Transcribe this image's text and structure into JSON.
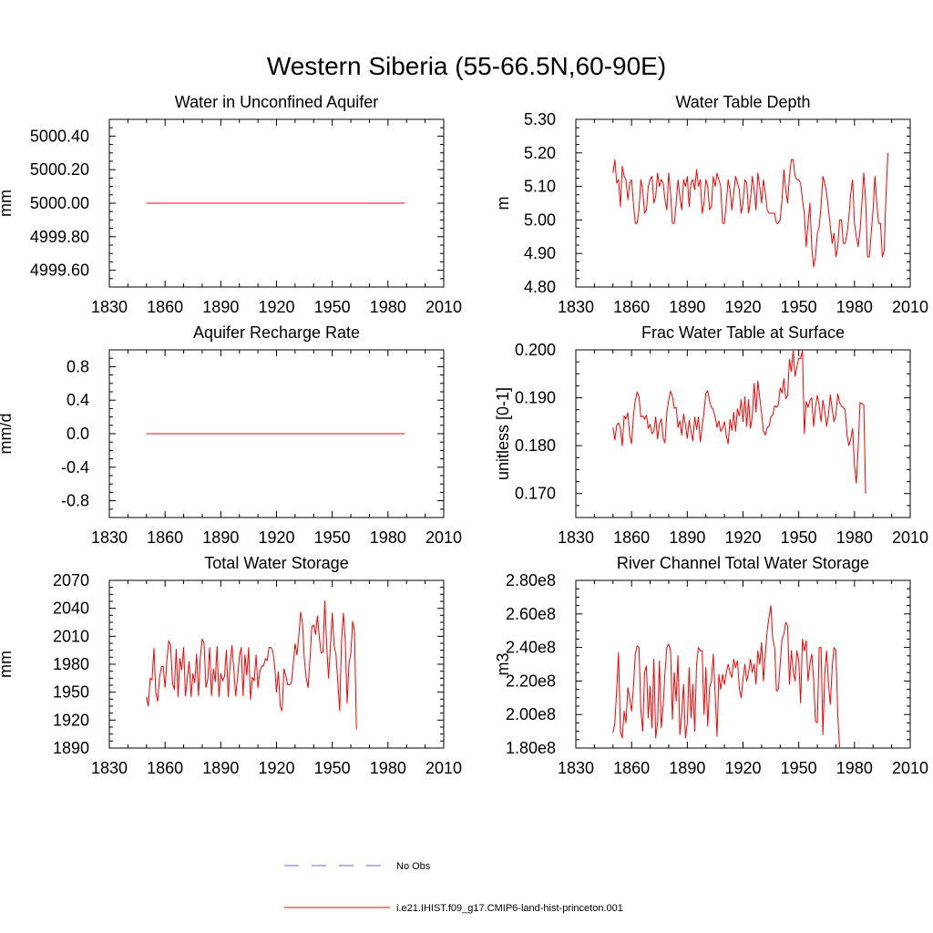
{
  "figure": {
    "title": "Western Siberia (55-66.5N,60-90E)"
  },
  "legend": {
    "entries": [
      {
        "label": "No Obs",
        "color": "#6a6acd",
        "style": "dashed"
      },
      {
        "label": "i.e21.IHIST.f09_g17.CMIP6-land-hist-princeton.001",
        "color": "#ff0000",
        "style": "solid"
      }
    ]
  },
  "chart_data": [
    {
      "type": "line",
      "title": "Water in Unconfined Aquifer",
      "ylabel": "mm",
      "xlim": [
        1830,
        2010
      ],
      "ylim": [
        4999.5,
        5000.5
      ],
      "xticks": [
        1830,
        1860,
        1890,
        1920,
        1950,
        1980,
        2010
      ],
      "yticks": [
        4999.6,
        4999.8,
        5000.0,
        5000.2,
        5000.4
      ],
      "ytick_labels": [
        "4999.60",
        "4999.80",
        "5000.00",
        "5000.20",
        "5000.40"
      ],
      "series": [
        {
          "color": "#ff0000",
          "x": [
            1850,
            1989
          ],
          "y": [
            5000.0,
            5000.0
          ]
        }
      ]
    },
    {
      "type": "line",
      "title": "Water Table Depth",
      "ylabel": "m",
      "xlim": [
        1830,
        2010
      ],
      "ylim": [
        4.8,
        5.3
      ],
      "xticks": [
        1830,
        1860,
        1890,
        1920,
        1950,
        1980,
        2010
      ],
      "yticks": [
        4.8,
        4.9,
        5.0,
        5.1,
        5.2,
        5.3
      ],
      "ytick_labels": [
        "4.80",
        "4.90",
        "5.00",
        "5.10",
        "5.20",
        "5.30"
      ],
      "series": [
        {
          "color": "#ff0000",
          "x_start": 1850,
          "x_step": 1,
          "y": [
            5.14,
            5.18,
            5.11,
            5.12,
            5.04,
            5.16,
            5.13,
            5.12,
            5.06,
            5.11,
            5.12,
            5.05,
            4.99,
            4.99,
            5.03,
            5.12,
            5.09,
            5.02,
            5.03,
            5.1,
            5.12,
            5.13,
            5.05,
            5.07,
            5.14,
            5.1,
            5.12,
            5.11,
            5.06,
            5.03,
            5.14,
            5.08,
            4.99,
            4.99,
            5.05,
            5.12,
            5.07,
            5.03,
            5.12,
            5.1,
            5.13,
            5.04,
            5.11,
            5.12,
            5.09,
            5.15,
            5.1,
            5.12,
            5.02,
            5.05,
            5.12,
            5.1,
            5.03,
            5.04,
            5.13,
            5.1,
            5.14,
            5.12,
            5.1,
            4.99,
            4.99,
            5.05,
            5.12,
            5.09,
            5.03,
            5.08,
            5.13,
            5.11,
            5.09,
            5.02,
            5.05,
            5.12,
            5.11,
            5.02,
            5.06,
            5.13,
            5.09,
            5.03,
            5.14,
            5.1,
            5.05,
            5.12,
            5.08,
            5.03,
            5.02,
            5.02,
            5.02,
            5.02,
            4.99,
            4.99,
            5.0,
            5.06,
            5.15,
            5.09,
            5.05,
            5.13,
            5.18,
            5.18,
            5.13,
            5.12,
            5.12,
            5.11,
            5.06,
            5.02,
            4.92,
            4.99,
            5.05,
            4.92,
            4.86,
            4.89,
            4.96,
            4.98,
            5.04,
            5.13,
            5.11,
            5.08,
            5.03,
            4.98,
            4.93,
            4.96,
            4.89,
            4.92,
            5.0,
            5.0,
            4.93,
            4.93,
            4.96,
            5.01,
            5.08,
            5.12,
            4.99,
            4.95,
            4.92,
            4.97,
            5.05,
            5.14,
            5.06,
            4.89,
            4.89,
            4.96,
            5.03,
            5.13,
            5.05,
            4.99,
            4.99,
            4.89,
            4.91,
            5.08,
            5.2
          ]
        }
      ]
    },
    {
      "type": "line",
      "title": "Aquifer Recharge Rate",
      "ylabel": "mm/d",
      "xlim": [
        1830,
        2010
      ],
      "ylim": [
        -1.0,
        1.0
      ],
      "xticks": [
        1830,
        1860,
        1890,
        1920,
        1950,
        1980,
        2010
      ],
      "yticks": [
        -0.8,
        -0.4,
        0.0,
        0.4,
        0.8
      ],
      "ytick_labels": [
        "-0.8",
        "-0.4",
        "0.0",
        "0.4",
        "0.8"
      ],
      "series": [
        {
          "color": "#ff0000",
          "x": [
            1850,
            1989
          ],
          "y": [
            0.0,
            0.0
          ]
        }
      ]
    },
    {
      "type": "line",
      "title": "Frac Water Table at Surface",
      "ylabel": "unitless [0-1]",
      "xlim": [
        1830,
        2010
      ],
      "ylim": [
        0.165,
        0.2
      ],
      "xticks": [
        1830,
        1860,
        1890,
        1920,
        1950,
        1980,
        2010
      ],
      "yticks": [
        0.17,
        0.18,
        0.19,
        0.2
      ],
      "ytick_labels": [
        "0.170",
        "0.180",
        "0.190",
        "0.200"
      ],
      "series": [
        {
          "color": "#ff0000",
          "x_start": 1850,
          "x_step": 1,
          "y": [
            0.1838,
            0.1812,
            0.1842,
            0.1848,
            0.1836,
            0.18,
            0.1862,
            0.1856,
            0.1869,
            0.1821,
            0.1804,
            0.1861,
            0.1895,
            0.1912,
            0.1902,
            0.186,
            0.1862,
            0.1855,
            0.1864,
            0.1836,
            0.1845,
            0.1825,
            0.183,
            0.186,
            0.1814,
            0.1845,
            0.1856,
            0.1816,
            0.1806,
            0.187,
            0.1895,
            0.1914,
            0.1903,
            0.1878,
            0.188,
            0.1838,
            0.1852,
            0.1822,
            0.1866,
            0.1844,
            0.1815,
            0.1853,
            0.183,
            0.181,
            0.186,
            0.1834,
            0.186,
            0.1808,
            0.184,
            0.187,
            0.1909,
            0.1915,
            0.1893,
            0.188,
            0.1875,
            0.186,
            0.1838,
            0.1852,
            0.183,
            0.1836,
            0.185,
            0.182,
            0.1804,
            0.1855,
            0.1832,
            0.187,
            0.183,
            0.1877,
            0.1862,
            0.1896,
            0.185,
            0.1902,
            0.184,
            0.1896,
            0.1836,
            0.1862,
            0.193,
            0.187,
            0.1935,
            0.19,
            0.1868,
            0.183,
            0.1822,
            0.1838,
            0.184,
            0.186,
            0.1864,
            0.1883,
            0.188,
            0.1885,
            0.192,
            0.191,
            0.194,
            0.1898,
            0.1905,
            0.198,
            0.1955,
            0.1999,
            0.1945,
            0.1964,
            0.1983,
            0.1982,
            0.1998,
            0.1825,
            0.1892,
            0.188,
            0.1895,
            0.19,
            0.184,
            0.188,
            0.1905,
            0.1884,
            0.185,
            0.1895,
            0.1872,
            0.184,
            0.1865,
            0.1906,
            0.1876,
            0.185,
            0.1865,
            0.1908,
            0.189,
            0.1882,
            0.188,
            0.1874,
            0.1822,
            0.18,
            0.1814,
            0.1836,
            0.1758,
            0.1722,
            0.1797,
            0.189,
            0.1888,
            0.1885,
            0.17
          ]
        }
      ]
    },
    {
      "type": "line",
      "title": "Total Water Storage",
      "ylabel": "mm",
      "xlim": [
        1830,
        2010
      ],
      "ylim": [
        1890,
        2070
      ],
      "xticks": [
        1830,
        1860,
        1890,
        1920,
        1950,
        1980,
        2010
      ],
      "yticks": [
        1890,
        1920,
        1950,
        1980,
        2010,
        2040,
        2070
      ],
      "ytick_labels": [
        "1890",
        "1920",
        "1950",
        "1980",
        "2010",
        "2040",
        "2070"
      ],
      "series": [
        {
          "color": "#ff0000",
          "x_start": 1850,
          "x_step": 1,
          "y": [
            1945,
            1935,
            1965,
            1963,
            1997,
            1950,
            1940,
            1965,
            1977,
            1978,
            1955,
            1985,
            2005,
            2000,
            1960,
            1953,
            1996,
            1945,
            1986,
            1974,
            1998,
            1946,
            1965,
            1983,
            1945,
            1970,
            1960,
            1991,
            1946,
            1988,
            2007,
            2003,
            1955,
            1964,
            1998,
            1946,
            1975,
            1961,
            1999,
            1945,
            1970,
            1962,
            1967,
            1995,
            1945,
            1980,
            2000,
            1975,
            1946,
            1965,
            1988,
            1998,
            1946,
            1990,
            1968,
            1998,
            1942,
            1966,
            1962,
            1990,
            1955,
            1972,
            1978,
            1978,
            1986,
            1984,
            1998,
            1998,
            1994,
            1978,
            1950,
            1972,
            1935,
            1930,
            1975,
            1968,
            1958,
            1958,
            1960,
            1980,
            2002,
            1990,
            2010,
            2036,
            2024,
            1985,
            1965,
            1955,
            1985,
            2020,
            2022,
            2012,
            2032,
            2010,
            1992,
            1993,
            2048,
            2000,
            1965,
            1998,
            2035,
            2000,
            1990,
            1960,
            1930,
            2005,
            2035,
            2005,
            1938,
            1980,
            1992,
            2026,
            2015,
            1910
          ]
        }
      ]
    },
    {
      "type": "line",
      "title": "River Channel Total Water Storage",
      "ylabel": "m3",
      "xlim": [
        1830,
        2010
      ],
      "ylim": [
        180000000.0,
        280000000.0
      ],
      "xticks": [
        1830,
        1860,
        1890,
        1920,
        1950,
        1980,
        2010
      ],
      "yticks": [
        180000000.0,
        200000000.0,
        220000000.0,
        240000000.0,
        260000000.0,
        280000000.0
      ],
      "ytick_labels": [
        "1.80e8",
        "2.00e8",
        "2.20e8",
        "2.40e8",
        "2.60e8",
        "2.80e8"
      ],
      "series": [
        {
          "color": "#ff0000",
          "x_start": 1850,
          "x_step": 1,
          "y": [
            189000000.0,
            195000000.0,
            215000000.0,
            237000000.0,
            190000000.0,
            186000000.0,
            202000000.0,
            195000000.0,
            216000000.0,
            210000000.0,
            202000000.0,
            216000000.0,
            236000000.0,
            241000000.0,
            240000000.0,
            203000000.0,
            190000000.0,
            225000000.0,
            229000000.0,
            198000000.0,
            217000000.0,
            192000000.0,
            233000000.0,
            186000000.0,
            195000000.0,
            232000000.0,
            192000000.0,
            205000000.0,
            225000000.0,
            240000000.0,
            242000000.0,
            238000000.0,
            197000000.0,
            225000000.0,
            208000000.0,
            235000000.0,
            188000000.0,
            200000000.0,
            218000000.0,
            186000000.0,
            195000000.0,
            228000000.0,
            198000000.0,
            218000000.0,
            190000000.0,
            230000000.0,
            240000000.0,
            238000000.0,
            238000000.0,
            200000000.0,
            228000000.0,
            193000000.0,
            216000000.0,
            220000000.0,
            236000000.0,
            212000000.0,
            187000000.0,
            224000000.0,
            215000000.0,
            224000000.0,
            218000000.0,
            225000000.0,
            230000000.0,
            225000000.0,
            222000000.0,
            233000000.0,
            228000000.0,
            232000000.0,
            216000000.0,
            210000000.0,
            221000000.0,
            230000000.0,
            220000000.0,
            225000000.0,
            233000000.0,
            225000000.0,
            230000000.0,
            218000000.0,
            238000000.0,
            230000000.0,
            243000000.0,
            220000000.0,
            236000000.0,
            250000000.0,
            258000000.0,
            265000000.0,
            245000000.0,
            240000000.0,
            214000000.0,
            215000000.0,
            230000000.0,
            245000000.0,
            248000000.0,
            255000000.0,
            253000000.0,
            218000000.0,
            238000000.0,
            226000000.0,
            220000000.0,
            238000000.0,
            232000000.0,
            207000000.0,
            245000000.0,
            238000000.0,
            244000000.0,
            220000000.0,
            230000000.0,
            236000000.0,
            221000000.0,
            196000000.0,
            195000000.0,
            240000000.0,
            240000000.0,
            188000000.0,
            224000000.0,
            238000000.0,
            218000000.0,
            206000000.0,
            228000000.0,
            240000000.0,
            238000000.0,
            200000000.0,
            180000000.0
          ]
        }
      ]
    }
  ]
}
